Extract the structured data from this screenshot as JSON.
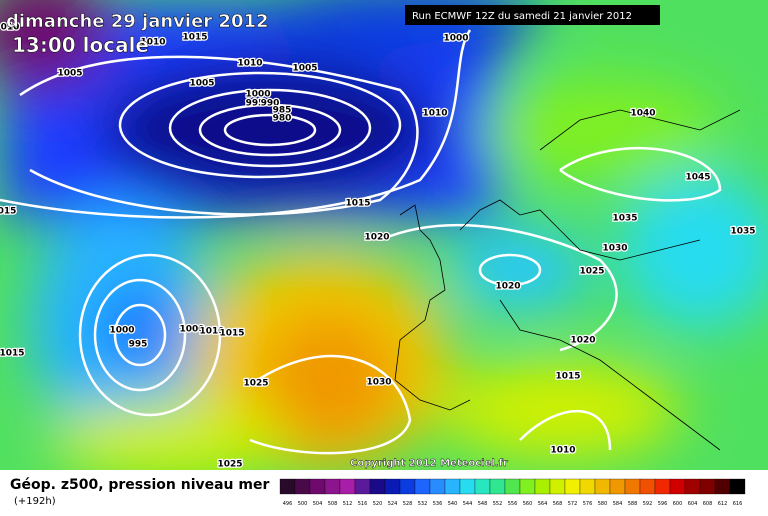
{
  "header": {
    "date": "dimanche 29 janvier 2012",
    "time": "13:00 locale",
    "run": "Run ECMWF 12Z du samedi 21 janvier 2012"
  },
  "map": {
    "isobar_labels": [
      "010",
      "1015",
      "1010",
      "1000",
      "1005",
      "1010",
      "1005",
      "1005",
      "1000",
      "995",
      "990",
      "985",
      "980",
      "1010",
      "1040",
      "1045",
      "015",
      "1015",
      "1035",
      "1035",
      "1020",
      "1030",
      "1025",
      "1020",
      "1000",
      "995",
      "1000",
      "1010",
      "1015",
      "1015",
      "1020",
      "1025",
      "1030",
      "1015",
      "1010",
      "1025"
    ],
    "copyright": "Copyright 2012 Meteociel.fr"
  },
  "footer": {
    "title": "Géop. z500, pression niveau mer",
    "lead": "(+192h)"
  },
  "legend": {
    "values": [
      496,
      500,
      504,
      508,
      512,
      516,
      520,
      524,
      528,
      532,
      536,
      540,
      544,
      548,
      552,
      556,
      560,
      564,
      568,
      572,
      576,
      580,
      584,
      588,
      592,
      596,
      600,
      604,
      608,
      612,
      616
    ],
    "colors": [
      "#2a0a2a",
      "#4a0a4a",
      "#6e0a6e",
      "#8c148c",
      "#a81ea8",
      "#5a1a9a",
      "#1a0a8a",
      "#0a1ab4",
      "#0a3ce0",
      "#1e64ff",
      "#288cff",
      "#28b4ff",
      "#28dcf0",
      "#28e6c0",
      "#30e690",
      "#50e650",
      "#80f020",
      "#a8f000",
      "#d0f000",
      "#f0f000",
      "#f0d800",
      "#f0b800",
      "#f09800",
      "#f07800",
      "#f05000",
      "#f02800",
      "#d00000",
      "#a00000",
      "#800000",
      "#500000",
      "#000000"
    ]
  }
}
